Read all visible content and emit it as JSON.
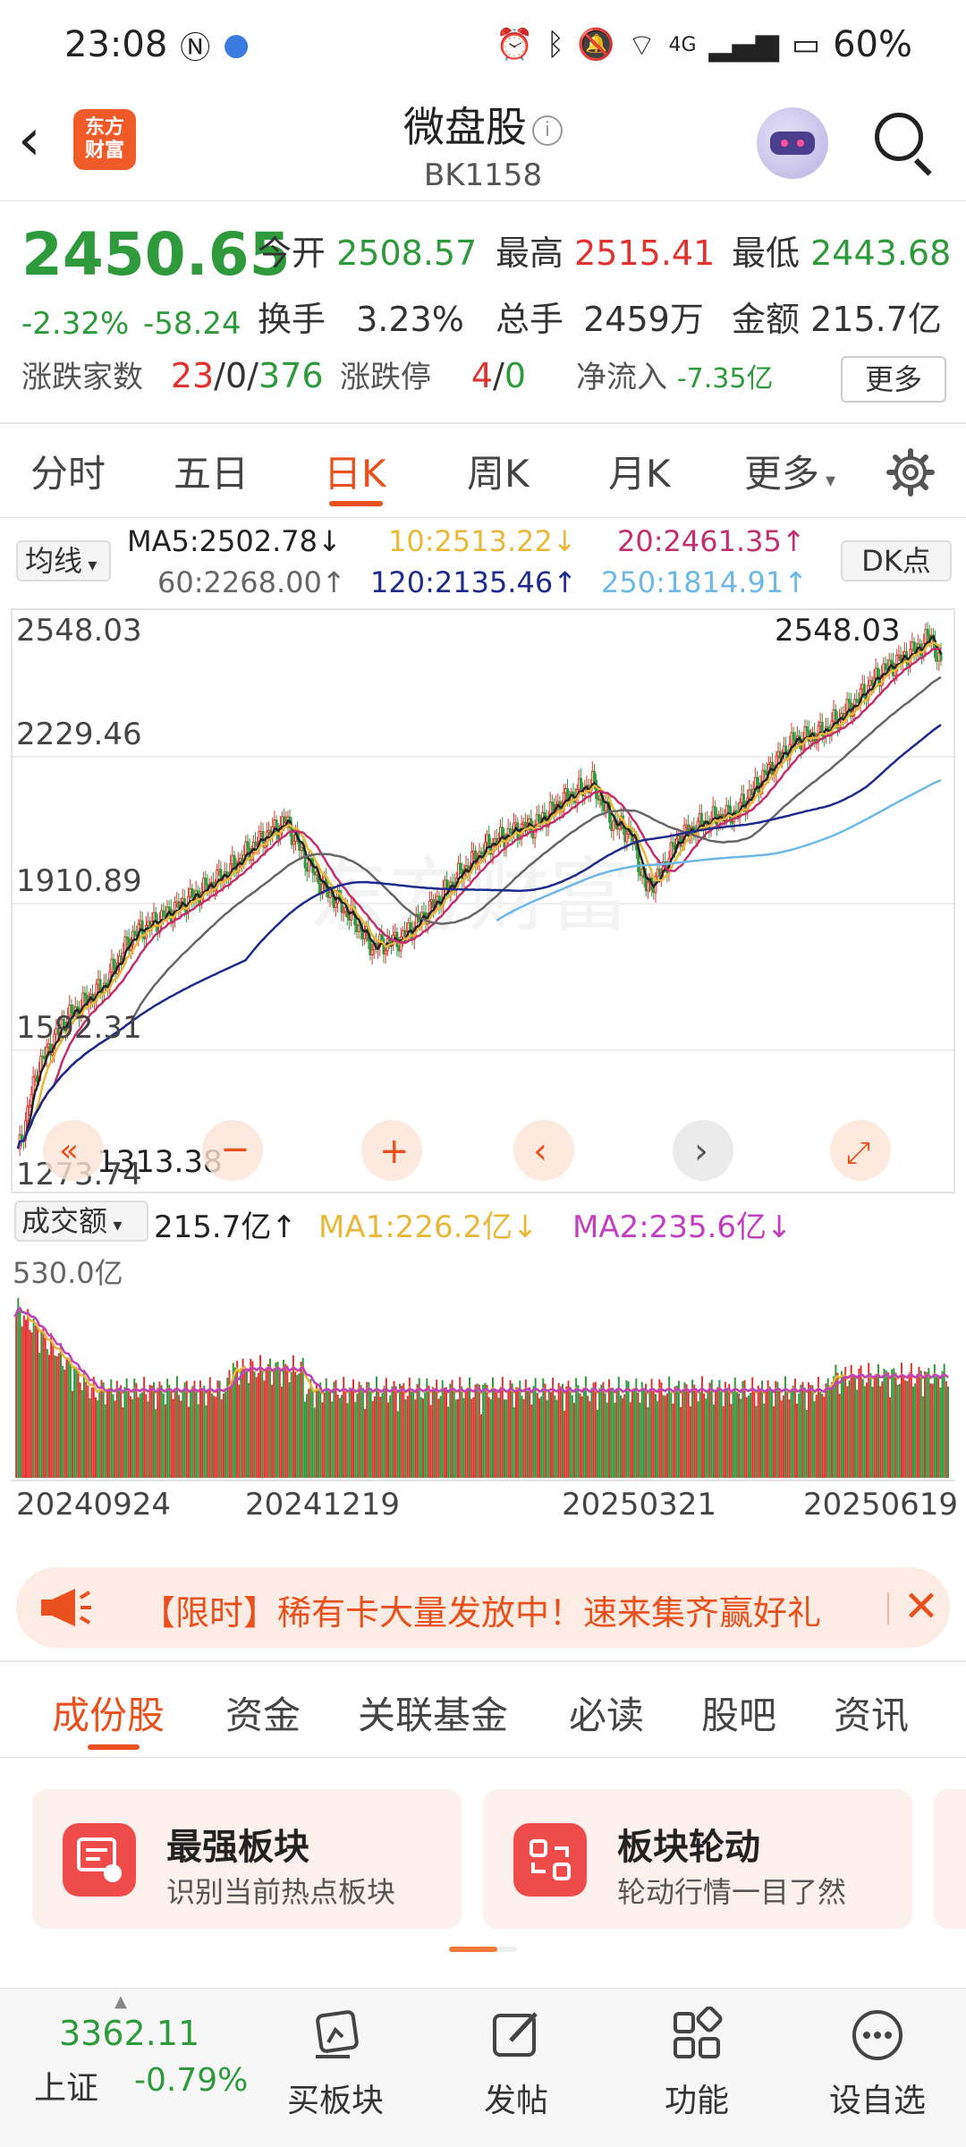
{
  "status": {
    "time": "23:08",
    "network": "4G",
    "battery": "60%"
  },
  "header": {
    "logo_line1": "东方",
    "logo_line2": "财富",
    "title": "微盘股",
    "code": "BK1158"
  },
  "quote": {
    "price": "2450.65",
    "change_pct": "-2.32%",
    "change": "-58.24",
    "open_label": "今开",
    "open": "2508.57",
    "high_label": "最高",
    "high": "2515.41",
    "low_label": "最低",
    "low": "2443.68",
    "turnover_label": "换手",
    "turnover": "3.23%",
    "volume_label": "总手",
    "volume": "2459万",
    "amount_label": "金额",
    "amount": "215.7亿",
    "breadth_label": "涨跌家数",
    "breadth_up": "23",
    "breadth_flat": "0",
    "breadth_down": "376",
    "limit_label": "涨跌停",
    "limit_up": "4",
    "limit_down": "0",
    "inflow_label": "净流入",
    "inflow": "-7.35亿",
    "more_label": "更多"
  },
  "tabs": [
    "分时",
    "五日",
    "日K",
    "周K",
    "月K",
    "更多"
  ],
  "active_tab": "日K",
  "ma": {
    "select_label": "均线",
    "ma5": "MA5:2502.78↓",
    "ma10": "10:2513.22↓",
    "ma20": "20:2461.35↑",
    "ma60": "60:2268.00↑",
    "ma120": "120:2135.46↑",
    "ma250": "250:1814.91↑",
    "dk_label": "DK点",
    "colors": {
      "ma5": "#222222",
      "ma10": "#e8b83a",
      "ma20": "#c2306e",
      "ma60": "#666666",
      "ma120": "#1e2a8c",
      "ma250": "#6db8e6"
    }
  },
  "chart_data": {
    "type": "candlestick",
    "y_ticks": [
      "2548.03",
      "2229.46",
      "1910.89",
      "1592.31",
      "1273.74"
    ],
    "ylim": [
      1273.74,
      2548.03
    ],
    "max_annotation": "2548.03",
    "min_annotation": "1313.38",
    "up_color": "#e0332f",
    "down_color": "#2e9a3c"
  },
  "volume": {
    "select_label": "成交额",
    "value": "215.7亿↑",
    "ma1": "MA1:226.2亿↓",
    "ma2": "MA2:235.6亿↓",
    "max_tick": "530.0亿",
    "ma1_color": "#e8b83a",
    "ma2_color": "#c040c0"
  },
  "dates": [
    "20240924",
    "20241219",
    "20250321",
    "20250619"
  ],
  "promo": {
    "text": "【限时】稀有卡大量发放中！速来集齐赢好礼"
  },
  "sub_tabs": [
    "成份股",
    "资金",
    "关联基金",
    "必读",
    "股吧",
    "资讯"
  ],
  "active_sub_tab": "成份股",
  "cards": [
    {
      "title": "最强板块",
      "desc": "识别当前热点板块"
    },
    {
      "title": "板块轮动",
      "desc": "轮动行情一目了然"
    }
  ],
  "bottom": {
    "index_value": "3362.11",
    "index_name": "上证",
    "index_change": "-0.79%",
    "nav": [
      "买板块",
      "发帖",
      "功能",
      "设自选"
    ]
  }
}
